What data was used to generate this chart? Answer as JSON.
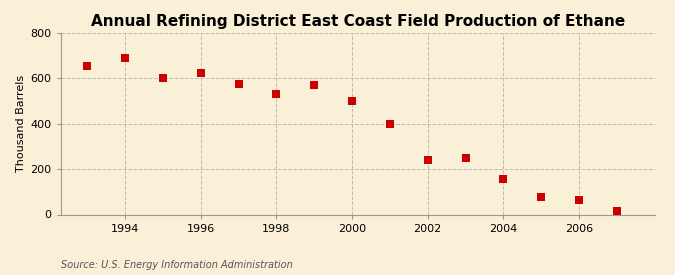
{
  "title": "Annual Refining District East Coast Field Production of Ethane",
  "ylabel": "Thousand Barrels",
  "source": "Source: U.S. Energy Information Administration",
  "background_color": "#faf0d7",
  "years": [
    1993,
    1994,
    1995,
    1996,
    1997,
    1998,
    1999,
    2000,
    2001,
    2002,
    2003,
    2004,
    2005,
    2006,
    2007
  ],
  "values": [
    655,
    690,
    600,
    625,
    575,
    530,
    570,
    500,
    400,
    240,
    250,
    155,
    75,
    65,
    15
  ],
  "marker_color": "#cc0000",
  "marker_size": 28,
  "ylim": [
    0,
    800
  ],
  "yticks": [
    0,
    200,
    400,
    600,
    800
  ],
  "xtick_years": [
    1994,
    1996,
    1998,
    2000,
    2002,
    2004,
    2006
  ],
  "xlim_left": 1992.3,
  "xlim_right": 2008.0,
  "grid_color": "#bbbbbb",
  "grid_style": "--",
  "grid_alpha": 1.0,
  "title_fontsize": 11,
  "ylabel_fontsize": 8,
  "tick_fontsize": 8,
  "source_fontsize": 7
}
